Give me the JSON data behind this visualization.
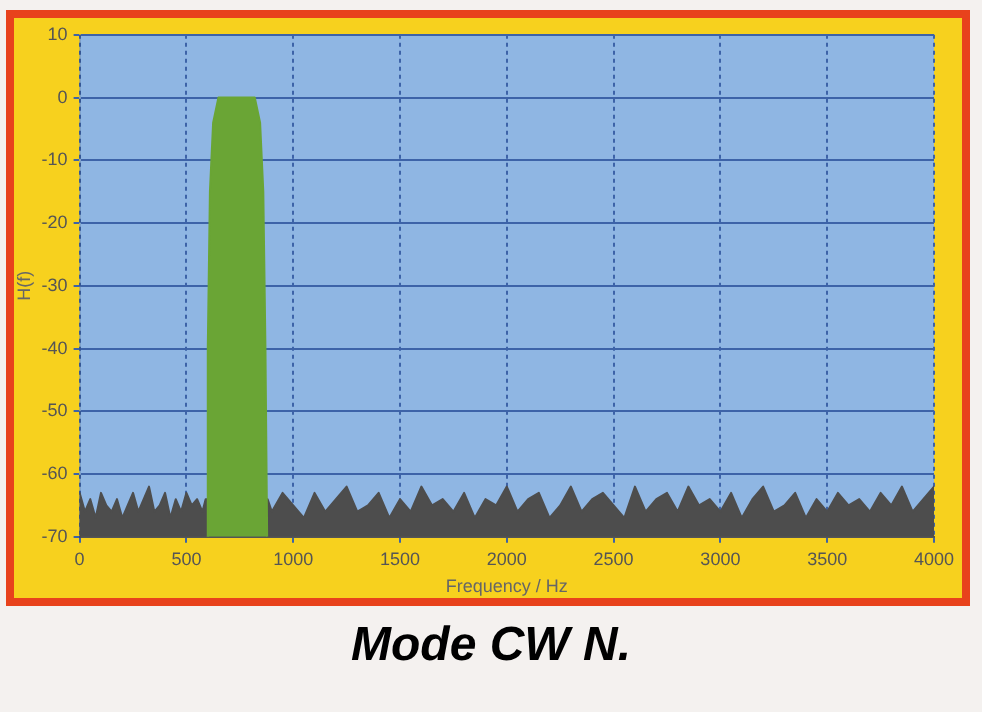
{
  "chart_data": {
    "type": "area",
    "title": "Mode CW N.",
    "xlabel": "Frequency / Hz",
    "ylabel": "H(f)",
    "xlim": [
      0,
      4000
    ],
    "xticks": [
      0,
      500,
      1000,
      1500,
      2000,
      2500,
      3000,
      3500,
      4000
    ],
    "ylim": [
      -70,
      10
    ],
    "yticks": [
      -70,
      -60,
      -50,
      -40,
      -30,
      -20,
      -10,
      0,
      10
    ],
    "grid": true,
    "series": [
      {
        "color": "#6aa535",
        "x": [
          595,
          600,
          610,
          625,
          650,
          820,
          845,
          860,
          870,
          878
        ],
        "values": [
          -70,
          -40,
          -15,
          -4,
          0,
          0,
          -4,
          -15,
          -40,
          -70
        ]
      },
      {
        "color": "#4d4d4d",
        "x": [
          0,
          0,
          25,
          50,
          75,
          100,
          125,
          150,
          175,
          200,
          225,
          250,
          275,
          300,
          325,
          350,
          375,
          400,
          425,
          450,
          475,
          500,
          525,
          550,
          575,
          590,
          880,
          900,
          950,
          1000,
          1050,
          1100,
          1150,
          1200,
          1250,
          1300,
          1350,
          1400,
          1450,
          1500,
          1550,
          1600,
          1650,
          1700,
          1750,
          1800,
          1850,
          1900,
          1950,
          2000,
          2050,
          2100,
          2150,
          2200,
          2250,
          2300,
          2350,
          2400,
          2450,
          2500,
          2550,
          2600,
          2650,
          2700,
          2750,
          2800,
          2850,
          2900,
          2950,
          3000,
          3050,
          3100,
          3150,
          3200,
          3250,
          3300,
          3350,
          3400,
          3450,
          3500,
          3550,
          3600,
          3650,
          3700,
          3750,
          3800,
          3850,
          3900,
          3950,
          4000,
          4000
        ],
        "values": [
          -70,
          -63,
          -66,
          -64,
          -67,
          -63,
          -65,
          -66,
          -64,
          -67,
          -65,
          -63,
          -66,
          -64,
          -62,
          -66,
          -65,
          -63,
          -67,
          -64,
          -66,
          -63,
          -65,
          -64,
          -66,
          -64,
          -64,
          -66,
          -63,
          -65,
          -67,
          -63,
          -66,
          -64,
          -62,
          -66,
          -65,
          -63,
          -67,
          -64,
          -66,
          -62,
          -65,
          -64,
          -66,
          -63,
          -67,
          -64,
          -65,
          -62,
          -66,
          -64,
          -63,
          -67,
          -65,
          -62,
          -66,
          -64,
          -63,
          -65,
          -67,
          -62,
          -66,
          -64,
          -63,
          -66,
          -62,
          -65,
          -64,
          -66,
          -63,
          -67,
          -64,
          -62,
          -66,
          -65,
          -63,
          -67,
          -64,
          -66,
          -63,
          -65,
          -64,
          -66,
          -63,
          -65,
          -62,
          -66,
          -64,
          -62,
          -70
        ]
      }
    ]
  }
}
